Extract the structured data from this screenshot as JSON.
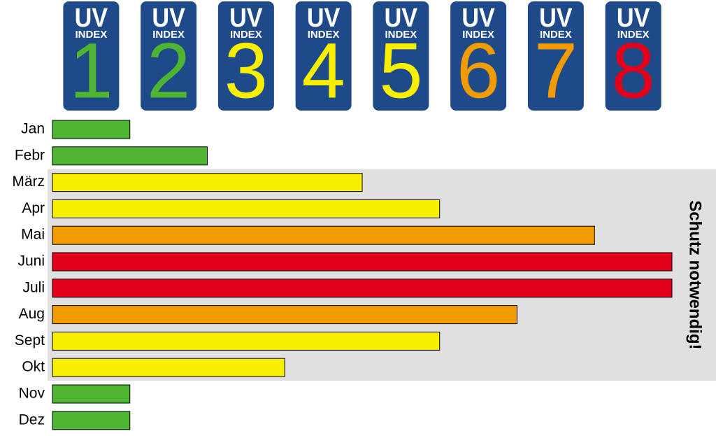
{
  "chart_data": {
    "type": "bar",
    "orientation": "horizontal",
    "tick_title": "UV",
    "tick_subtitle": "INDEX",
    "categories": [
      "Jan",
      "Febr",
      "März",
      "Apr",
      "Mai",
      "Juni",
      "Juli",
      "Aug",
      "Sept",
      "Okt",
      "Nov",
      "Dez"
    ],
    "values": [
      1,
      2,
      4,
      5,
      7,
      8,
      8,
      6,
      5,
      3,
      1,
      1
    ],
    "colors": [
      "#4db531",
      "#4db531",
      "#f7ee00",
      "#f7ee00",
      "#f09c00",
      "#e3001b",
      "#e3001b",
      "#f09c00",
      "#f7ee00",
      "#f7ee00",
      "#4db531",
      "#4db531"
    ],
    "xlim": [
      0,
      8
    ],
    "xticks": [
      1,
      2,
      3,
      4,
      5,
      6,
      7,
      8
    ],
    "tick_colors": [
      "#4db531",
      "#4db531",
      "#f7ee00",
      "#f7ee00",
      "#f7ee00",
      "#f09c00",
      "#f09c00",
      "#e3001b"
    ],
    "badge_color": "#1f4a8a",
    "shaded_range": [
      "März",
      "Okt"
    ],
    "shade_color": "#e0e0e0",
    "annotation": "Schutz notwendig!"
  }
}
